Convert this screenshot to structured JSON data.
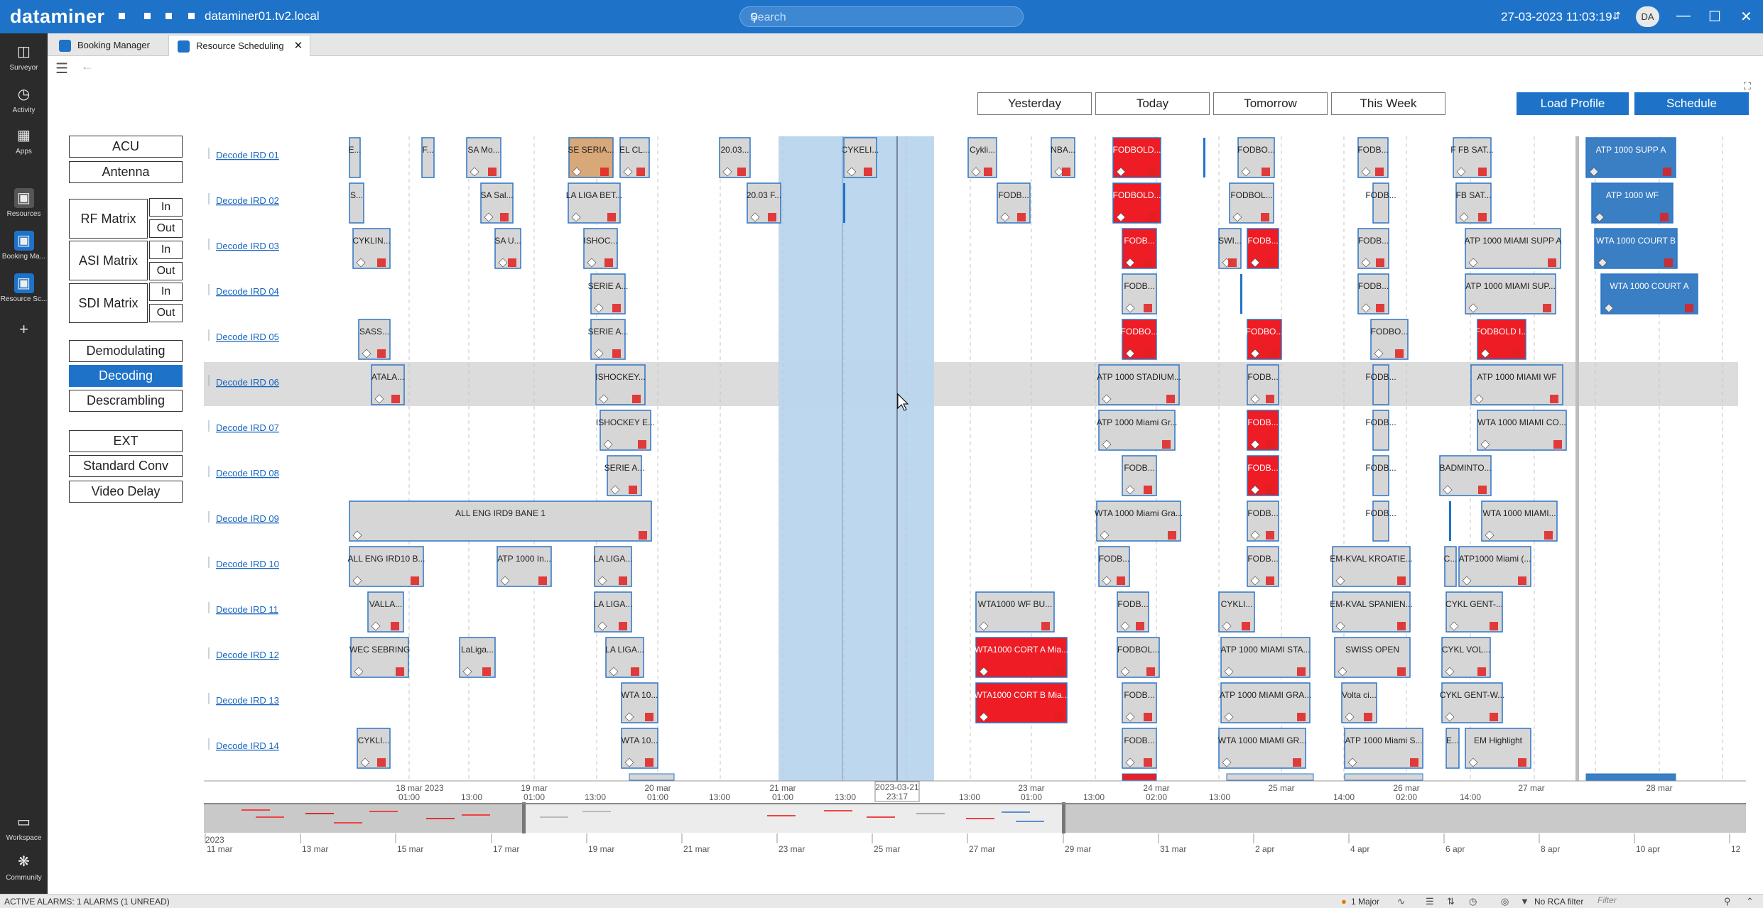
{
  "app": {
    "brand": "dataminer",
    "host": "dataminer01.tv2.local",
    "search_placeholder": "Search",
    "datetime": "27-03-2023 11:03:19",
    "user_initials": "DA"
  },
  "sidebar": {
    "top": [
      {
        "label": "Surveyor",
        "icon": "surveyor-icon"
      },
      {
        "label": "Activity",
        "icon": "activity-icon"
      },
      {
        "label": "Apps",
        "icon": "apps-icon"
      }
    ],
    "middle": [
      {
        "label": "Resources",
        "icon": "resources-icon"
      },
      {
        "label": "Booking Ma...",
        "icon": "booking-manager-icon"
      },
      {
        "label": "Resource Sc...",
        "icon": "resource-scheduling-icon"
      }
    ],
    "bottom": [
      {
        "label": "Workspace",
        "icon": "workspace-icon"
      },
      {
        "label": "Community",
        "icon": "community-icon"
      }
    ]
  },
  "tabs": [
    {
      "label": "Booking Manager",
      "active": false
    },
    {
      "label": "Resource Scheduling",
      "active": true
    }
  ],
  "nav_buttons": [
    "Yesterday",
    "Today",
    "Tomorrow",
    "This Week"
  ],
  "action_buttons": [
    "Load Profile",
    "Schedule"
  ],
  "filters": {
    "group1": [
      "ACU",
      "Antenna"
    ],
    "matrices": [
      {
        "label": "RF Matrix",
        "in": "In",
        "out": "Out"
      },
      {
        "label": "ASI Matrix",
        "in": "In",
        "out": "Out"
      },
      {
        "label": "SDI Matrix",
        "in": "In",
        "out": "Out"
      }
    ],
    "group2": [
      "Demodulating",
      "Decoding",
      "Descrambling"
    ],
    "active": "Decoding",
    "group3": [
      "EXT",
      "Standard Conv",
      "Video Delay"
    ]
  },
  "timeline": {
    "rows": [
      "Decode IRD 01",
      "Decode IRD 02",
      "Decode IRD 03",
      "Decode IRD 04",
      "Decode IRD 05",
      "Decode IRD 06",
      "Decode IRD 07",
      "Decode IRD 08",
      "Decode IRD 09",
      "Decode IRD 10",
      "Decode IRD 11",
      "Decode IRD 12",
      "Decode IRD 13",
      "Decode IRD 14"
    ],
    "selected_row": 5,
    "axis_top": [
      "13:00",
      "01:00",
      "13:00",
      "01:00",
      "13:00",
      "01:00",
      "13:00",
      "01:00",
      "13:00",
      "01:00",
      "13:00",
      "01:00",
      "13:00",
      "02:00",
      "14:00",
      "02:00",
      "14:00"
    ],
    "axis_bottom": [
      "18 mar 2023",
      "19 mar",
      "20 mar",
      "21 mar",
      "23 mar",
      "24 mar",
      "25 mar",
      "26 mar",
      "27 mar",
      "28 mar"
    ],
    "cursor_label": [
      "2023-03-21",
      "23:17"
    ],
    "nav_year": "2023",
    "nav_ticks": [
      "11 mar",
      "13 mar",
      "15 mar",
      "17 mar",
      "19 mar",
      "21 mar",
      "23 mar",
      "25 mar",
      "27 mar",
      "29 mar",
      "31 mar",
      "2 apr",
      "4 apr",
      "6 apr",
      "8 apr",
      "10 apr",
      "12"
    ],
    "blocks": [
      {
        "r": 0,
        "t": "E..."
      },
      {
        "r": 0,
        "t": "F..."
      },
      {
        "r": 0,
        "t": "SA Mo..."
      },
      {
        "r": 0,
        "t": "SE SERIA..."
      },
      {
        "r": 0,
        "t": "EL CL..."
      },
      {
        "r": 0,
        "t": "20.03..."
      },
      {
        "r": 0,
        "t": "CYKELI..."
      },
      {
        "r": 0,
        "t": "Cykli..."
      },
      {
        "r": 0,
        "t": "NBA..."
      },
      {
        "r": 0,
        "t": "FODBOLD..."
      },
      {
        "r": 0,
        "t": ""
      },
      {
        "r": 0,
        "t": "FODBO..."
      },
      {
        "r": 0,
        "t": "FODB..."
      },
      {
        "r": 0,
        "t": "F FB SAT..."
      },
      {
        "r": 0,
        "t": "ATP 1000 SUPP A"
      },
      {
        "r": 1,
        "t": "S..."
      },
      {
        "r": 1,
        "t": "SA Sal..."
      },
      {
        "r": 1,
        "t": "LA LIGA BET..."
      },
      {
        "r": 1,
        "t": "20.03 F..."
      },
      {
        "r": 1,
        "t": ""
      },
      {
        "r": 1,
        "t": "FODB..."
      },
      {
        "r": 1,
        "t": "FODBOLD..."
      },
      {
        "r": 1,
        "t": "FODBOL..."
      },
      {
        "r": 1,
        "t": "FODB..."
      },
      {
        "r": 1,
        "t": "FB SAT..."
      },
      {
        "r": 1,
        "t": "ATP 1000 WF"
      },
      {
        "r": 2,
        "t": "CYKLIN..."
      },
      {
        "r": 2,
        "t": "SA U..."
      },
      {
        "r": 2,
        "t": "ISHOC..."
      },
      {
        "r": 2,
        "t": "FODB..."
      },
      {
        "r": 2,
        "t": "SWI..."
      },
      {
        "r": 2,
        "t": "FODB..."
      },
      {
        "r": 2,
        "t": "FODB..."
      },
      {
        "r": 2,
        "t": "ATP 1000 MIAMI SUPP A"
      },
      {
        "r": 2,
        "t": "WTA 1000 COURT B"
      },
      {
        "r": 3,
        "t": "SERIE A..."
      },
      {
        "r": 3,
        "t": "FODB..."
      },
      {
        "r": 3,
        "t": ""
      },
      {
        "r": 3,
        "t": "FODB..."
      },
      {
        "r": 3,
        "t": "ATP 1000 MIAMI SUP..."
      },
      {
        "r": 3,
        "t": "WTA 1000 COURT A"
      },
      {
        "r": 4,
        "t": "SASS..."
      },
      {
        "r": 4,
        "t": "SERIE A..."
      },
      {
        "r": 4,
        "t": "FODBO..."
      },
      {
        "r": 4,
        "t": "FODBO..."
      },
      {
        "r": 4,
        "t": "FODBO..."
      },
      {
        "r": 4,
        "t": "FODBOLD I..."
      },
      {
        "r": 5,
        "t": "ATALA..."
      },
      {
        "r": 5,
        "t": "ISHOCKEY..."
      },
      {
        "r": 5,
        "t": "ATP 1000 STADIUM..."
      },
      {
        "r": 5,
        "t": "FODB..."
      },
      {
        "r": 5,
        "t": "FODB..."
      },
      {
        "r": 5,
        "t": "ATP 1000 MIAMI WF"
      },
      {
        "r": 6,
        "t": "ISHOCKEY E..."
      },
      {
        "r": 6,
        "t": "ATP 1000 Miami Gr..."
      },
      {
        "r": 6,
        "t": "FODB..."
      },
      {
        "r": 6,
        "t": "FODB..."
      },
      {
        "r": 6,
        "t": "WTA 1000 MIAMI CO..."
      },
      {
        "r": 7,
        "t": "SERIE A..."
      },
      {
        "r": 7,
        "t": "FODB..."
      },
      {
        "r": 7,
        "t": "FODB..."
      },
      {
        "r": 7,
        "t": "FODB..."
      },
      {
        "r": 7,
        "t": "BADMINTO..."
      },
      {
        "r": 8,
        "t": "ALL ENG IRD9 BANE 1"
      },
      {
        "r": 8,
        "t": "WTA 1000 Miami Gra..."
      },
      {
        "r": 8,
        "t": "FODB..."
      },
      {
        "r": 8,
        "t": "FODB..."
      },
      {
        "r": 8,
        "t": ""
      },
      {
        "r": 8,
        "t": "WTA 1000 MIAMI..."
      },
      {
        "r": 9,
        "t": "ALL ENG IRD10 B..."
      },
      {
        "r": 9,
        "t": "ATP 1000 In..."
      },
      {
        "r": 9,
        "t": "LA LIGA..."
      },
      {
        "r": 9,
        "t": "FODB..."
      },
      {
        "r": 9,
        "t": "FODB..."
      },
      {
        "r": 9,
        "t": "EM-KVAL KROATIE..."
      },
      {
        "r": 9,
        "t": "C..."
      },
      {
        "r": 9,
        "t": "ATP1000 Miami (..."
      },
      {
        "r": 10,
        "t": "VALLA..."
      },
      {
        "r": 10,
        "t": "LA LIGA..."
      },
      {
        "r": 10,
        "t": "WTA1000 WF BU..."
      },
      {
        "r": 10,
        "t": "FODB..."
      },
      {
        "r": 10,
        "t": "CYKLI..."
      },
      {
        "r": 10,
        "t": "EM-KVAL SPANIEN..."
      },
      {
        "r": 10,
        "t": "CYKL GENT-..."
      },
      {
        "r": 11,
        "t": "WEC SEBRING"
      },
      {
        "r": 11,
        "t": "LaLiga..."
      },
      {
        "r": 11,
        "t": "LA LIGA..."
      },
      {
        "r": 11,
        "t": "WTA1000 CORT A Mia..."
      },
      {
        "r": 11,
        "t": "FODBOL..."
      },
      {
        "r": 11,
        "t": "ATP 1000 MIAMI STA..."
      },
      {
        "r": 11,
        "t": "SWISS OPEN"
      },
      {
        "r": 11,
        "t": "CYKL VOL..."
      },
      {
        "r": 12,
        "t": "WTA 10..."
      },
      {
        "r": 12,
        "t": "WTA1000 CORT B Mia..."
      },
      {
        "r": 12,
        "t": "FODB..."
      },
      {
        "r": 12,
        "t": "ATP 1000 MIAMI GRA..."
      },
      {
        "r": 12,
        "t": "Volta ci..."
      },
      {
        "r": 12,
        "t": "CYKL GENT-W..."
      },
      {
        "r": 13,
        "t": "CYKLI..."
      },
      {
        "r": 13,
        "t": "WTA 10..."
      },
      {
        "r": 13,
        "t": "FODB..."
      },
      {
        "r": 13,
        "t": "WTA 1000 MIAMI GR..."
      },
      {
        "r": 13,
        "t": "ATP 1000 Miami S..."
      },
      {
        "r": 13,
        "t": "E..."
      },
      {
        "r": 13,
        "t": "EM Highlight"
      }
    ]
  },
  "colors": {
    "accent": "#1e73c9",
    "block_gray": "#d6d6d6",
    "block_red": "#ee1c25",
    "block_blue": "#3a7ec4",
    "block_tan": "#d9a878",
    "selection": "#b9d5ee"
  },
  "status": {
    "alarms": "ACTIVE ALARMS: 1 ALARMS (1 UNREAD)",
    "major": "1 Major",
    "rca": "No RCA filter",
    "filter_placeholder": "Filter"
  }
}
